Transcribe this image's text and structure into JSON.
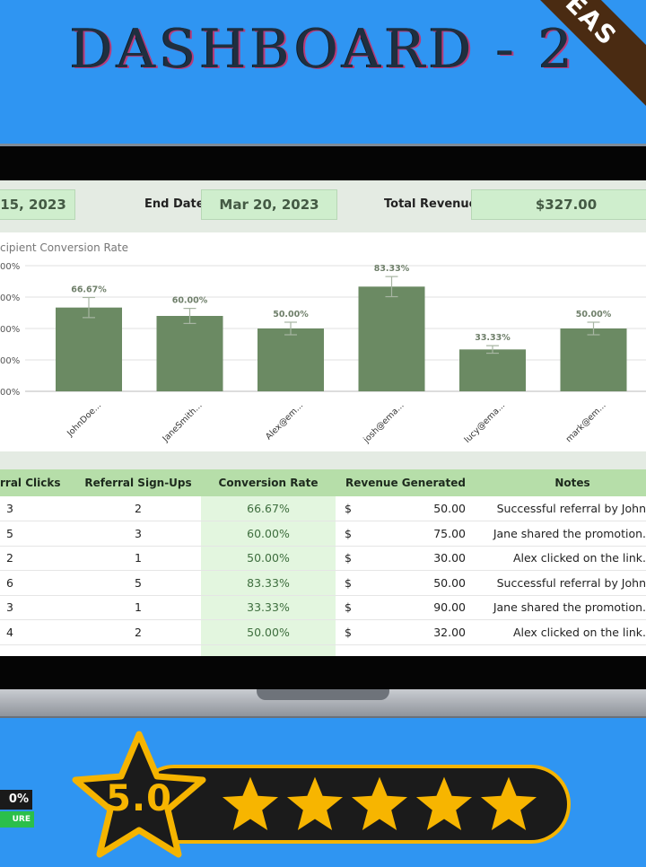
{
  "page_title": "DASHBOARD - 2",
  "ribbon_text": "EAS",
  "header": {
    "start_date_value": "15, 2023",
    "end_date_label": "End Date:",
    "end_date_value": "Mar 20, 2023",
    "total_revenue_label": "Total Revenue:",
    "total_revenue_value": "$327.00"
  },
  "chart_title": "cipient Conversion Rate",
  "chart_data": {
    "type": "bar",
    "title": "cipient Conversion Rate",
    "categories": [
      "JohnDoe...",
      "JaneSmith...",
      "Alex@em...",
      "josh@ema...",
      "lucy@ema...",
      "mark@em..."
    ],
    "values": [
      66.67,
      60.0,
      50.0,
      83.33,
      33.33,
      50.0
    ],
    "data_labels": [
      "66.67%",
      "60.00%",
      "50.00%",
      "83.33%",
      "33.33%",
      "50.00%"
    ],
    "error_bars": [
      8,
      6,
      5,
      8,
      3,
      5
    ],
    "y_tick_labels": [
      "00%",
      "00%",
      "00%",
      "00%",
      "00%"
    ],
    "ylim": [
      0,
      100
    ],
    "grid": true,
    "bar_color": "#6b8a63"
  },
  "table": {
    "headers": [
      "rral Clicks",
      "Referral Sign-Ups",
      "Conversion Rate",
      "Revenue Generated",
      "Notes"
    ],
    "rows": [
      {
        "clicks": "3",
        "signups": "2",
        "rate": "66.67%",
        "currency": "$",
        "revenue": "50.00",
        "notes": "Successful referral by John"
      },
      {
        "clicks": "5",
        "signups": "3",
        "rate": "60.00%",
        "currency": "$",
        "revenue": "75.00",
        "notes": "Jane shared the promotion."
      },
      {
        "clicks": "2",
        "signups": "1",
        "rate": "50.00%",
        "currency": "$",
        "revenue": "30.00",
        "notes": "Alex clicked on the link."
      },
      {
        "clicks": "6",
        "signups": "5",
        "rate": "83.33%",
        "currency": "$",
        "revenue": "50.00",
        "notes": "Successful referral by John"
      },
      {
        "clicks": "3",
        "signups": "1",
        "rate": "33.33%",
        "currency": "$",
        "revenue": "90.00",
        "notes": "Jane shared the promotion."
      },
      {
        "clicks": "4",
        "signups": "2",
        "rate": "50.00%",
        "currency": "$",
        "revenue": "32.00",
        "notes": "Alex clicked on the link."
      }
    ]
  },
  "badge": {
    "top_text": "0%",
    "bottom_text": "URE"
  },
  "rating": {
    "value": "5.0",
    "stars": 5
  },
  "colors": {
    "background": "#2f95f2",
    "accent_green": "#b6dea9",
    "bar": "#6b8a63",
    "star": "#f7b500",
    "ribbon": "#4a2b12"
  }
}
